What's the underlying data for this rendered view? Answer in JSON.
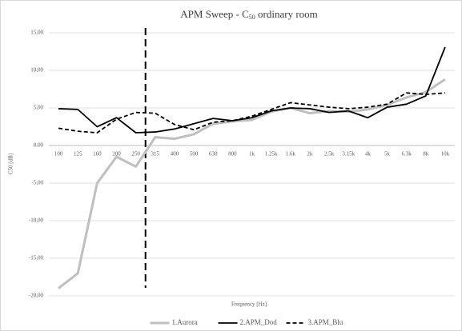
{
  "chart_data": {
    "type": "line",
    "title": {
      "main": "APM Sweep - C",
      "subscript": "50",
      "rest": " ordinary room"
    },
    "x_label": "Frequency [Hz]",
    "y_label": "C50 [dB]",
    "categories": [
      "100",
      "125",
      "160",
      "200",
      "250",
      "315",
      "400",
      "500",
      "630",
      "800",
      "1k",
      "1.25k",
      "1.6k",
      "2k",
      "2.5k",
      "3.15k",
      "4k",
      "5k",
      "6.3k",
      "8k",
      "10k"
    ],
    "series": [
      {
        "name": "1.Aurora",
        "color": "#bfbfbf",
        "dash": false,
        "values": [
          -19.0,
          -17.0,
          -5.0,
          -1.5,
          -2.8,
          1.1,
          0.9,
          1.5,
          2.9,
          3.2,
          3.4,
          4.5,
          5.0,
          4.3,
          4.6,
          4.5,
          4.8,
          5.4,
          6.4,
          7.1,
          8.8
        ]
      },
      {
        "name": "2.APM_Dod",
        "color": "#000000",
        "dash": false,
        "values": [
          4.9,
          4.8,
          2.5,
          3.7,
          1.7,
          1.8,
          2.2,
          2.9,
          3.6,
          3.3,
          3.7,
          4.6,
          5.0,
          4.9,
          4.4,
          4.6,
          3.7,
          5.1,
          5.5,
          6.6,
          13.1
        ]
      },
      {
        "name": "3.APM_Blu",
        "color": "#000000",
        "dash": true,
        "values": [
          2.3,
          1.9,
          1.7,
          3.5,
          4.4,
          4.3,
          2.8,
          2.1,
          3.1,
          3.3,
          3.9,
          4.8,
          5.7,
          5.4,
          5.1,
          4.9,
          5.1,
          5.5,
          7.0,
          6.8,
          7.0
        ]
      }
    ],
    "ylim": [
      -20,
      15
    ],
    "yticks": [
      {
        "value": -20,
        "label": "-20,00"
      },
      {
        "value": -15,
        "label": "-15,00"
      },
      {
        "value": -10,
        "label": "-10,00"
      },
      {
        "value": -5,
        "label": "-5,00"
      },
      {
        "value": 0,
        "label": "0,00"
      },
      {
        "value": 5,
        "label": "5,00"
      },
      {
        "value": 10,
        "label": "10,00"
      },
      {
        "value": 15,
        "label": "15,00"
      }
    ],
    "grid": true,
    "legend": "bottom"
  }
}
